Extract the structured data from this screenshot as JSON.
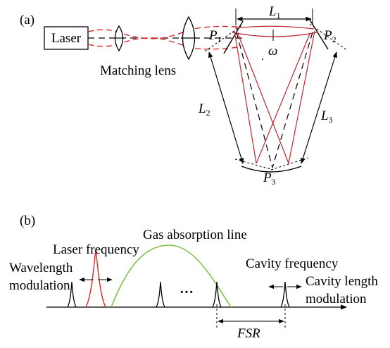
{
  "panel_a": {
    "panel_label": "(a)",
    "laser_label": "Laser",
    "lens_label": "Matching lens",
    "L1": "L",
    "L1_sub": "1",
    "L2": "L",
    "L2_sub": "2",
    "L3": "L",
    "L3_sub": "3",
    "P1": "P",
    "P1_sub": "1",
    "P2": "P",
    "P2_sub": "2",
    "P3": "P",
    "P3_sub": "3",
    "omega": "ω"
  },
  "panel_b": {
    "panel_label": "(b)",
    "gas_line_label": "Gas absorption line",
    "laser_freq_label": "Laser frequency",
    "wavelength_mod_line1": "Wavelength",
    "wavelength_mod_line2": "modulation",
    "cavity_freq_label": "Cavity frequency",
    "cavity_len_mod_line1": "Cavity length",
    "cavity_len_mod_line2": "modulation",
    "ellipsis": "···",
    "fsr_label": "FSR"
  },
  "colors": {
    "beam": "#e0262b",
    "absorption": "#7ac043",
    "ink": "#000000"
  }
}
